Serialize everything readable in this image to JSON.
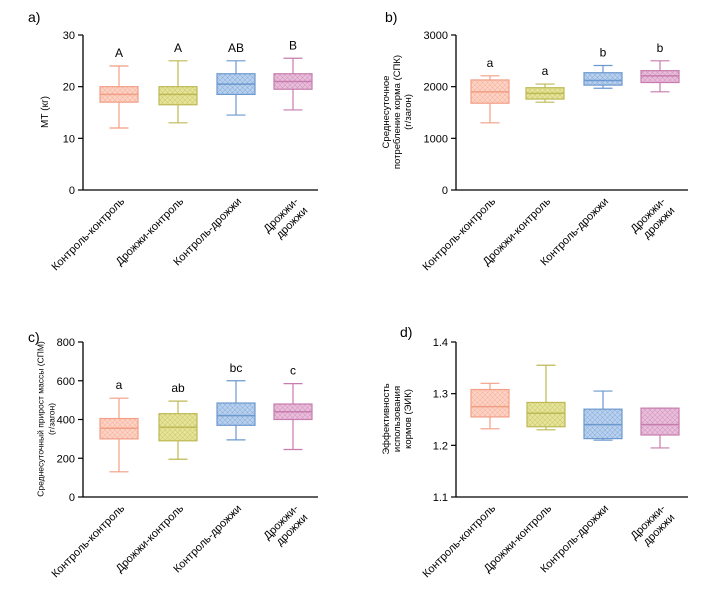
{
  "chart_data": [
    {
      "type": "box",
      "panel_label": "a)",
      "ylabel": "МТ (кг)",
      "ylim": [
        0,
        30
      ],
      "yticks": [
        "0",
        "10",
        "20",
        "30"
      ],
      "categories": [
        "Контроль-контроль",
        "Дрожжи-контроль",
        "Контроль-дрожжи",
        "Дрожжи-\nдрожжи"
      ],
      "boxes": [
        {
          "min": 12,
          "q1": 17,
          "median": 18.5,
          "q3": 20,
          "max": 24,
          "letter": "A"
        },
        {
          "min": 13,
          "q1": 16.5,
          "median": 18.5,
          "q3": 20,
          "max": 25,
          "letter": "A"
        },
        {
          "min": 14.5,
          "q1": 18.5,
          "median": 20.5,
          "q3": 22.5,
          "max": 25,
          "letter": "AB"
        },
        {
          "min": 15.5,
          "q1": 19.5,
          "median": 21,
          "q3": 22.5,
          "max": 25.5,
          "letter": "B"
        }
      ]
    },
    {
      "type": "box",
      "panel_label": "b)",
      "ylabel": "Среднесуточное\nпотребление корма (СПК)\n(г/загон)",
      "ylim": [
        0,
        3000
      ],
      "yticks": [
        "0",
        "1000",
        "2000",
        "3000"
      ],
      "categories": [
        "Контроль-контроль",
        "Дрожжи-контроль",
        "Контроль-дрожжи",
        "Дрожжи-\nдрожжи"
      ],
      "boxes": [
        {
          "min": 1300,
          "q1": 1680,
          "median": 1900,
          "q3": 2130,
          "max": 2210,
          "letter": "a"
        },
        {
          "min": 1700,
          "q1": 1760,
          "median": 1870,
          "q3": 1980,
          "max": 2050,
          "letter": "a"
        },
        {
          "min": 1970,
          "q1": 2030,
          "median": 2120,
          "q3": 2270,
          "max": 2410,
          "letter": "b"
        },
        {
          "min": 1900,
          "q1": 2080,
          "median": 2210,
          "q3": 2310,
          "max": 2500,
          "letter": "b"
        }
      ]
    },
    {
      "type": "box",
      "panel_label": "c)",
      "ylabel": "Среднесуточный прирост массы (СПМ)\n(г/загон)",
      "ylim": [
        0,
        800
      ],
      "yticks": [
        "0",
        "200",
        "400",
        "600",
        "800"
      ],
      "categories": [
        "Контроль-контроль",
        "Дрожжи-контроль",
        "Контроль-дрожжи",
        "Дрожжи-\nдрожжи"
      ],
      "boxes": [
        {
          "min": 130,
          "q1": 300,
          "median": 355,
          "q3": 405,
          "max": 510,
          "letter": "a"
        },
        {
          "min": 195,
          "q1": 290,
          "median": 360,
          "q3": 430,
          "max": 495,
          "letter": "ab"
        },
        {
          "min": 295,
          "q1": 370,
          "median": 420,
          "q3": 485,
          "max": 600,
          "letter": "bc"
        },
        {
          "min": 245,
          "q1": 400,
          "median": 440,
          "q3": 480,
          "max": 585,
          "letter": "c"
        }
      ]
    },
    {
      "type": "box",
      "panel_label": "d)",
      "ylabel": "Эффективность\nиспользования\nкормов (ЭИК)",
      "ylim": [
        1.1,
        1.4
      ],
      "yticks": [
        "1.1",
        "1.2",
        "1.3",
        "1.4"
      ],
      "categories": [
        "Контроль-контроль",
        "Дрожжи-контроль",
        "Контроль-дрожжи",
        "Дрожжи-\nдрожжи"
      ],
      "boxes": [
        {
          "min": 1.232,
          "q1": 1.255,
          "median": 1.275,
          "q3": 1.308,
          "max": 1.32,
          "letter": ""
        },
        {
          "min": 1.23,
          "q1": 1.236,
          "median": 1.262,
          "q3": 1.283,
          "max": 1.355,
          "letter": ""
        },
        {
          "min": 1.21,
          "q1": 1.213,
          "median": 1.24,
          "q3": 1.27,
          "max": 1.305,
          "letter": ""
        },
        {
          "min": 1.195,
          "q1": 1.22,
          "median": 1.24,
          "q3": 1.272,
          "max": 1.272,
          "letter": ""
        }
      ]
    }
  ],
  "colors": {
    "series": [
      {
        "fill": "#fcd3c4",
        "line": "#f29e85"
      },
      {
        "fill": "#e6e49a",
        "line": "#bdb953"
      },
      {
        "fill": "#b9d1ee",
        "line": "#6b98cf"
      },
      {
        "fill": "#e8bedb",
        "line": "#c77cad"
      }
    ],
    "axis": "#000000"
  }
}
